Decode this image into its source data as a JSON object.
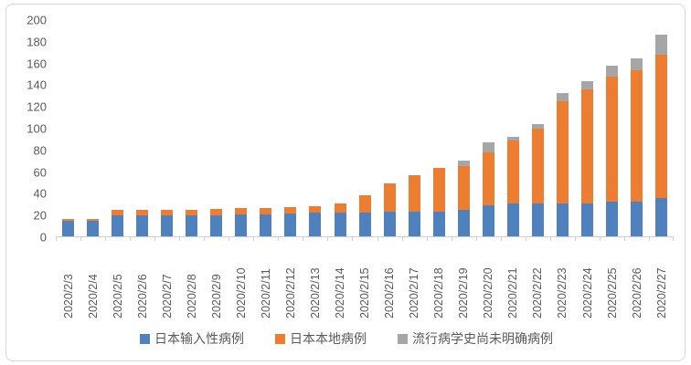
{
  "chart_data": {
    "type": "bar",
    "stacked": true,
    "title": "",
    "xlabel": "",
    "ylabel": "",
    "ylim": [
      0,
      200
    ],
    "ytick_step": 20,
    "y_ticks": [
      200,
      180,
      160,
      140,
      120,
      100,
      80,
      60,
      40,
      20,
      0
    ],
    "grid": false,
    "legend_position": "bottom",
    "categories": [
      "2020/2/3",
      "2020/2/4",
      "2020/2/5",
      "2020/2/6",
      "2020/2/7",
      "2020/2/8",
      "2020/2/9",
      "2020/2/10",
      "2020/2/11",
      "2020/2/12",
      "2020/2/13",
      "2020/2/14",
      "2020/2/15",
      "2020/2/16",
      "2020/2/17",
      "2020/2/18",
      "2020/2/19",
      "2020/2/20",
      "2020/2/21",
      "2020/2/22",
      "2020/2/23",
      "2020/2/24",
      "2020/2/25",
      "2020/2/26",
      "2020/2/27"
    ],
    "series": [
      {
        "name": "日本输入性病例",
        "color": "#4e81bd",
        "values": [
          14,
          14,
          19,
          19,
          19,
          19,
          19,
          20,
          20,
          21,
          22,
          22,
          22,
          23,
          23,
          23,
          24,
          29,
          30,
          30,
          30,
          30,
          32,
          32,
          35
        ]
      },
      {
        "name": "日本本地病例",
        "color": "#ed7d31",
        "values": [
          2,
          2,
          5,
          5,
          5,
          5,
          6,
          6,
          6,
          6,
          6,
          8,
          16,
          26,
          33,
          40,
          41,
          48,
          58,
          69,
          94,
          105,
          115,
          121,
          132
        ]
      },
      {
        "name": "流行病学史尚未明确病例",
        "color": "#a6a6a6",
        "values": [
          0,
          0,
          0,
          0,
          0,
          0,
          0,
          0,
          0,
          0,
          0,
          0,
          0,
          0,
          0,
          0,
          5,
          10,
          4,
          4,
          8,
          8,
          10,
          11,
          19
        ]
      }
    ],
    "totals": [
      16,
      16,
      24,
      24,
      24,
      24,
      25,
      26,
      26,
      27,
      28,
      30,
      38,
      49,
      56,
      63,
      70,
      87,
      92,
      103,
      132,
      143,
      157,
      164,
      186
    ],
    "colors": {
      "axis_line": "#cfcfcf",
      "tick_text": "#595959",
      "background": "#ffffff",
      "border": "#d9d9d9"
    }
  }
}
